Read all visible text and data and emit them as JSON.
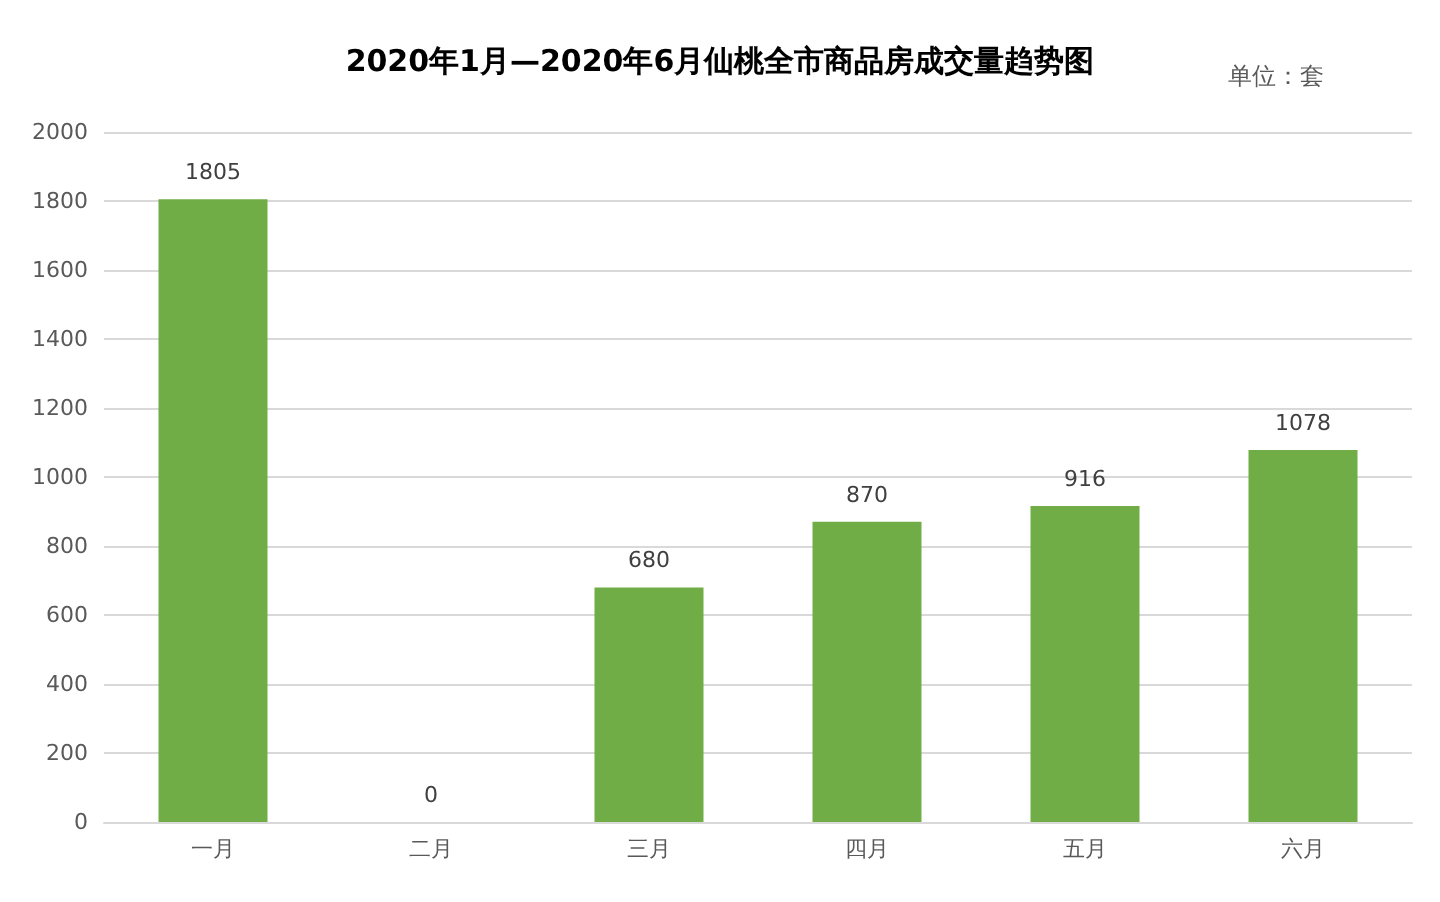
{
  "chart_data": {
    "type": "bar",
    "title": "2020年1月—2020年6月仙桃全市商品房成交量趋势图",
    "annotations": [
      "单位：套"
    ],
    "categories": [
      "一月",
      "二月",
      "三月",
      "四月",
      "五月",
      "六月"
    ],
    "values": [
      1805,
      0,
      680,
      870,
      916,
      1078
    ],
    "color": "#70ad47",
    "ylim": [
      0,
      2000
    ],
    "yticks": [
      0,
      200,
      400,
      600,
      800,
      1000,
      1200,
      1400,
      1600,
      1800,
      2000
    ],
    "grid": "y",
    "data_labels": true
  }
}
